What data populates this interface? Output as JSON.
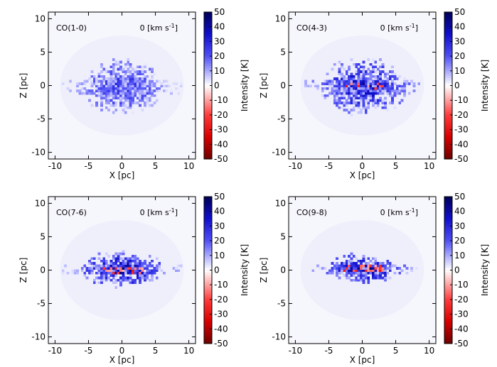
{
  "chart_data": [
    {
      "type": "heatmap",
      "panel_label": "CO(1-0)",
      "velocity_label": "0 [km s",
      "velocity_unit_sup": "-1",
      "velocity_close": "]",
      "xlabel": "X [pc]",
      "ylabel": "Z [pc]",
      "xlim": [
        -11,
        11
      ],
      "ylim": [
        -11,
        11
      ],
      "xticks": [
        -10,
        -5,
        0,
        5,
        10
      ],
      "yticks": [
        -10,
        -5,
        0,
        5,
        10
      ],
      "colorbar": {
        "label": "Intensity [K]",
        "range": [
          -50,
          50
        ],
        "ticks": [
          50,
          40,
          30,
          20,
          10,
          0,
          -10,
          -20,
          -30,
          -40,
          -50
        ]
      },
      "emission": {
        "center_x": 0,
        "center_z": -0.3,
        "extent_x": 6.5,
        "extent_z": 4.5,
        "peak_K": 30,
        "negative_fraction": 0.0
      }
    },
    {
      "type": "heatmap",
      "panel_label": "CO(4-3)",
      "velocity_label": "0 [km s",
      "velocity_unit_sup": "-1",
      "velocity_close": "]",
      "xlabel": "X [pc]",
      "ylabel": "Z [pc]",
      "xlim": [
        -11,
        11
      ],
      "ylim": [
        -11,
        11
      ],
      "xticks": [
        -10,
        -5,
        0,
        5,
        10
      ],
      "yticks": [
        -10,
        -5,
        0,
        5,
        10
      ],
      "colorbar": {
        "label": "Intensity [K]",
        "range": [
          -50,
          50
        ],
        "ticks": [
          50,
          40,
          30,
          20,
          10,
          0,
          -10,
          -20,
          -30,
          -40,
          -50
        ]
      },
      "emission": {
        "center_x": 0,
        "center_z": -0.3,
        "extent_x": 7,
        "extent_z": 4.5,
        "peak_K": 40,
        "negative_fraction": 0.03
      }
    },
    {
      "type": "heatmap",
      "panel_label": "CO(7-6)",
      "velocity_label": "0 [km s",
      "velocity_unit_sup": "-1",
      "velocity_close": "]",
      "xlabel": "X [pc]",
      "ylabel": "Z [pc]",
      "xlim": [
        -11,
        11
      ],
      "ylim": [
        -11,
        11
      ],
      "xticks": [
        -10,
        -5,
        0,
        5,
        10
      ],
      "yticks": [
        -10,
        -5,
        0,
        5,
        10
      ],
      "colorbar": {
        "label": "Intensity [K]",
        "range": [
          -50,
          50
        ],
        "ticks": [
          50,
          40,
          30,
          20,
          10,
          0,
          -10,
          -20,
          -30,
          -40,
          -50
        ]
      },
      "emission": {
        "center_x": 0,
        "center_z": -0.1,
        "extent_x": 6.5,
        "extent_z": 3,
        "peak_K": 45,
        "negative_fraction": 0.12
      }
    },
    {
      "type": "heatmap",
      "panel_label": "CO(9-8)",
      "velocity_label": "0 [km s",
      "velocity_unit_sup": "-1",
      "velocity_close": "]",
      "xlabel": "X [pc]",
      "ylabel": "Z [pc]",
      "xlim": [
        -11,
        11
      ],
      "ylim": [
        -11,
        11
      ],
      "xticks": [
        -10,
        -5,
        0,
        5,
        10
      ],
      "yticks": [
        -10,
        -5,
        0,
        5,
        10
      ],
      "colorbar": {
        "label": "Intensity [K]",
        "range": [
          -50,
          50
        ],
        "ticks": [
          50,
          40,
          30,
          20,
          10,
          0,
          -10,
          -20,
          -30,
          -40,
          -50
        ]
      },
      "emission": {
        "center_x": 0,
        "center_z": 0,
        "extent_x": 6,
        "extent_z": 2.5,
        "peak_K": 45,
        "negative_fraction": 0.14
      }
    }
  ]
}
